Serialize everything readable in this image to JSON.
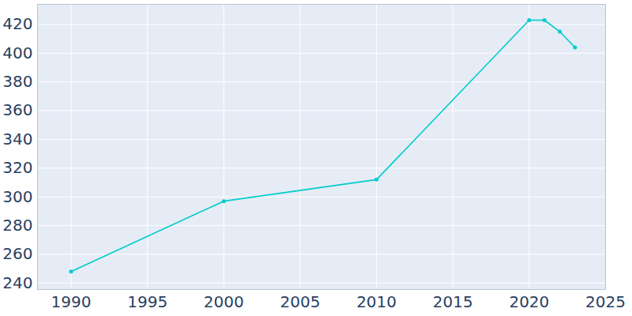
{
  "chart_data": {
    "type": "line",
    "x": [
      1990,
      2000,
      2010,
      2020,
      2021,
      2022,
      2023
    ],
    "values": [
      248,
      297,
      312,
      423,
      423,
      415,
      404
    ],
    "color": "#00cccc",
    "marker": "circle",
    "xlim": [
      1987.8,
      2025
    ],
    "ylim": [
      235.5,
      434
    ],
    "xticks": [
      1990,
      1995,
      2000,
      2005,
      2010,
      2015,
      2020,
      2025
    ],
    "yticks": [
      240,
      260,
      280,
      300,
      320,
      340,
      360,
      380,
      400,
      420
    ],
    "grid": true
  }
}
